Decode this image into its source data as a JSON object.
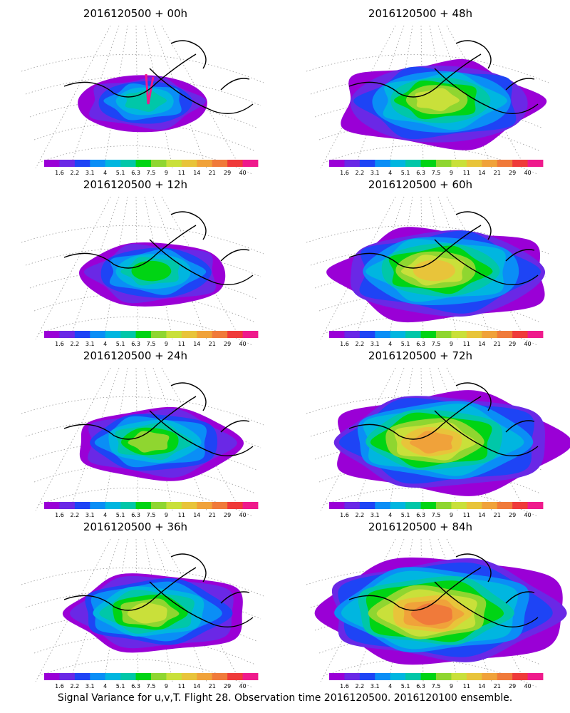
{
  "caption": "Signal Variance for u,v,T. Flight 28. Observation time 2016120500. 2016120100 ensemble.",
  "colorbar": {
    "ticks": [
      "1.6",
      "2.2",
      "3.1",
      "4",
      "5.1",
      "6.3",
      "7.5",
      "9",
      "11",
      "14",
      "21",
      "29",
      "40"
    ],
    "colors": [
      "#9a00d6",
      "#6a28e6",
      "#1e44f5",
      "#0a8ef6",
      "#00b6e0",
      "#00c7a8",
      "#00d414",
      "#8fd630",
      "#c9e03a",
      "#e8c43a",
      "#f0a23a",
      "#f07a3a",
      "#ef3a3a",
      "#ef1a8c"
    ]
  },
  "panels": [
    {
      "title": "2016120500 + 00h",
      "lead": 0
    },
    {
      "title": "2016120500 + 48h",
      "lead": 48
    },
    {
      "title": "2016120500 + 12h",
      "lead": 12
    },
    {
      "title": "2016120500 + 60h",
      "lead": 60
    },
    {
      "title": "2016120500 + 24h",
      "lead": 24
    },
    {
      "title": "2016120500 + 72h",
      "lead": 72
    },
    {
      "title": "2016120500 + 36h",
      "lead": 36
    },
    {
      "title": "2016120500 + 84h",
      "lead": 84
    }
  ]
}
